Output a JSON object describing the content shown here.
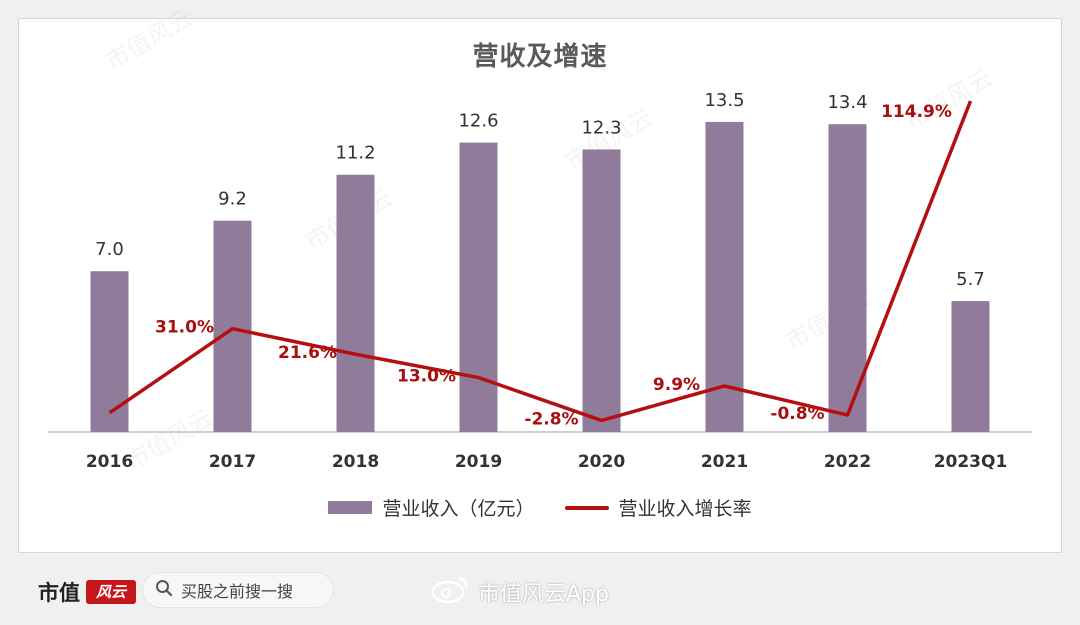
{
  "colors": {
    "bar": "#917b9b",
    "line": "#b50f10",
    "text": "#333333",
    "growth_label": "#a8100f"
  },
  "chart_data": {
    "type": "bar+line",
    "title": "营收及增速",
    "categories": [
      "2016",
      "2017",
      "2018",
      "2019",
      "2020",
      "2021",
      "2022",
      "2023Q1"
    ],
    "series": [
      {
        "name": "营业收入（亿元）",
        "type": "bar",
        "values": [
          7.0,
          9.2,
          11.2,
          12.6,
          12.3,
          13.5,
          13.4,
          5.7
        ],
        "labels": [
          "7.0",
          "9.2",
          "11.2",
          "12.6",
          "12.3",
          "13.5",
          "13.4",
          "5.7"
        ]
      },
      {
        "name": "营业收入增长率",
        "type": "line",
        "values": [
          null,
          31.0,
          21.6,
          13.0,
          -2.8,
          9.9,
          -0.8,
          114.9
        ],
        "labels": [
          "",
          "31.0%",
          "21.6%",
          "13.0%",
          "-2.8%",
          "9.9%",
          "-0.8%",
          "114.9%"
        ]
      }
    ],
    "ylim_bar": [
      0,
      14.5
    ],
    "ylim_line": [
      -10,
      130
    ],
    "legend_position": "bottom"
  },
  "footer": {
    "logo_text": "市值",
    "logo_mark": "风云",
    "search_placeholder": "买股之前搜一搜",
    "weibo_label": "市值风云App"
  },
  "watermark_text": "市值风云"
}
